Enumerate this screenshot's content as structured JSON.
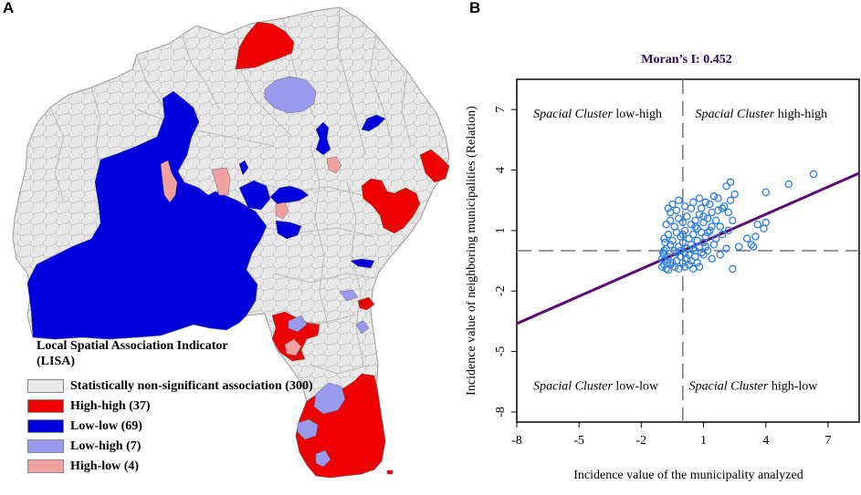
{
  "panels": {
    "a_label": "A",
    "b_label": "B"
  },
  "legend": {
    "title": "Local Spatial Association Indicator (LISA)",
    "items": [
      {
        "label": "Statistically non-significant association (300)",
        "color": "#e8e8e8"
      },
      {
        "label": "High-high (37)",
        "color": "#ee0000"
      },
      {
        "label": "Low-low (69)",
        "color": "#0000dd"
      },
      {
        "label": "Low-high (7)",
        "color": "#9999ee"
      },
      {
        "label": "High-low (4)",
        "color": "#f2a0a0"
      }
    ]
  },
  "map_colors": {
    "base": "#e8e8e8",
    "border": "#aaaaaa",
    "high_high": "#ee0000",
    "low_low": "#0000dd",
    "low_high": "#9999ee",
    "high_low": "#f2a0a0"
  },
  "chart_data": {
    "type": "scatter",
    "title": "Moran’s I: 0.452",
    "xlabel": "Incidence value of the municipality analyzed",
    "ylabel": "Incidence value of neighboring municipalities (Relation)",
    "xlim": [
      -8,
      8.5
    ],
    "ylim": [
      -8.5,
      8.5
    ],
    "xticks": [
      -8,
      -5,
      -2,
      1,
      4,
      7
    ],
    "yticks": [
      -8,
      -5,
      -2,
      1,
      4,
      7
    ],
    "reference_lines": {
      "x": 0,
      "y": 0
    },
    "regression": {
      "slope": 0.452,
      "intercept": 0
    },
    "quadrant_labels": [
      {
        "italic": "Spacial Cluster",
        "rest": " low-high",
        "position": "top-left"
      },
      {
        "italic": "Spacial Cluster",
        "rest": " high-high",
        "position": "top-right"
      },
      {
        "italic": "Spacial Cluster",
        "rest": " low-low",
        "position": "bottom-left"
      },
      {
        "italic": "Spacial Cluster",
        "rest": " high-low",
        "position": "bottom-right"
      }
    ],
    "points": [
      [
        -1.0,
        -0.8
      ],
      [
        -0.9,
        -0.5
      ],
      [
        -0.8,
        -0.9
      ],
      [
        -0.7,
        -0.3
      ],
      [
        -0.6,
        -0.7
      ],
      [
        -0.5,
        -0.6
      ],
      [
        -0.9,
        -0.2
      ],
      [
        -1.0,
        -0.4
      ],
      [
        -0.4,
        -0.8
      ],
      [
        -0.3,
        -0.5
      ],
      [
        -0.2,
        -0.9
      ],
      [
        -0.1,
        -0.3
      ],
      [
        0.0,
        -0.6
      ],
      [
        0.1,
        -0.8
      ],
      [
        0.2,
        -0.4
      ],
      [
        0.3,
        -0.7
      ],
      [
        0.4,
        -0.5
      ],
      [
        0.5,
        -0.9
      ],
      [
        0.6,
        -0.3
      ],
      [
        0.7,
        -0.6
      ],
      [
        0.8,
        -0.8
      ],
      [
        -0.8,
        0.1
      ],
      [
        -0.6,
        0.3
      ],
      [
        -0.4,
        0.0
      ],
      [
        -0.2,
        0.2
      ],
      [
        0.0,
        0.4
      ],
      [
        0.2,
        0.1
      ],
      [
        0.4,
        0.3
      ],
      [
        0.6,
        0.0
      ],
      [
        0.8,
        0.2
      ],
      [
        1.0,
        0.4
      ],
      [
        -0.9,
        0.6
      ],
      [
        -0.7,
        0.8
      ],
      [
        -0.5,
        0.5
      ],
      [
        -0.3,
        0.9
      ],
      [
        -0.1,
        0.7
      ],
      [
        0.1,
        1.0
      ],
      [
        0.3,
        0.6
      ],
      [
        0.5,
        0.8
      ],
      [
        0.7,
        1.1
      ],
      [
        0.9,
        0.9
      ],
      [
        1.1,
        0.7
      ],
      [
        1.3,
        1.0
      ],
      [
        -0.8,
        1.3
      ],
      [
        -0.6,
        1.5
      ],
      [
        -0.4,
        1.2
      ],
      [
        -0.2,
        1.6
      ],
      [
        0.0,
        1.4
      ],
      [
        0.2,
        1.7
      ],
      [
        0.4,
        1.3
      ],
      [
        0.6,
        1.5
      ],
      [
        0.8,
        1.8
      ],
      [
        1.0,
        1.4
      ],
      [
        1.2,
        1.6
      ],
      [
        1.4,
        1.9
      ],
      [
        1.6,
        1.5
      ],
      [
        -0.7,
        2.1
      ],
      [
        -0.5,
        2.3
      ],
      [
        -0.3,
        2.0
      ],
      [
        0.1,
        2.2
      ],
      [
        0.5,
        2.4
      ],
      [
        0.9,
        2.1
      ],
      [
        1.3,
        2.3
      ],
      [
        1.7,
        2.0
      ],
      [
        2.0,
        2.2
      ],
      [
        1.2,
        0.0
      ],
      [
        1.5,
        0.3
      ],
      [
        1.8,
        -0.2
      ],
      [
        2.1,
        0.1
      ],
      [
        1.4,
        -0.4
      ],
      [
        1.0,
        -0.2
      ],
      [
        1.6,
        0.6
      ],
      [
        1.9,
        0.8
      ],
      [
        2.2,
        1.0
      ],
      [
        1.8,
        1.2
      ],
      [
        2.4,
        1.5
      ],
      [
        -0.9,
        0.0
      ],
      [
        -0.95,
        -0.1
      ],
      [
        -0.85,
        0.4
      ],
      [
        -0.75,
        -0.6
      ],
      [
        0.3,
        -0.2
      ],
      [
        0.5,
        0.1
      ],
      [
        0.7,
        0.5
      ],
      [
        0.9,
        -0.1
      ],
      [
        1.1,
        0.2
      ],
      [
        -0.1,
        0.0
      ],
      [
        0.1,
        -0.1
      ],
      [
        1.2,
        0.9
      ],
      [
        1.4,
        1.2
      ],
      [
        1.5,
        2.7
      ],
      [
        2.2,
        1.9
      ],
      [
        2.3,
        2.5
      ],
      [
        2.5,
        2.8
      ],
      [
        2.1,
        3.2
      ],
      [
        3.1,
        0.6
      ],
      [
        3.3,
        0.3
      ],
      [
        3.5,
        0.7
      ],
      [
        3.4,
        0.2
      ],
      [
        2.7,
        0.2
      ],
      [
        2.4,
        -0.9
      ],
      [
        3.6,
        1.3
      ],
      [
        3.9,
        1.1
      ],
      [
        4.0,
        1.4
      ],
      [
        4.0,
        2.9
      ],
      [
        5.1,
        3.3
      ],
      [
        6.3,
        3.8
      ],
      [
        2.3,
        3.4
      ],
      [
        -0.6,
        1.9
      ],
      [
        -0.2,
        2.5
      ],
      [
        0.4,
        2.1
      ],
      [
        0.8,
        2.6
      ],
      [
        1.1,
        2.4
      ],
      [
        -0.9,
        -0.7
      ],
      [
        -0.7,
        -0.95
      ],
      [
        -0.3,
        -0.1
      ],
      [
        0.0,
        0.8
      ],
      [
        0.6,
        1.2
      ],
      [
        1.0,
        1.7
      ],
      [
        1.7,
        2.6
      ],
      [
        1.9,
        2.1
      ]
    ]
  }
}
